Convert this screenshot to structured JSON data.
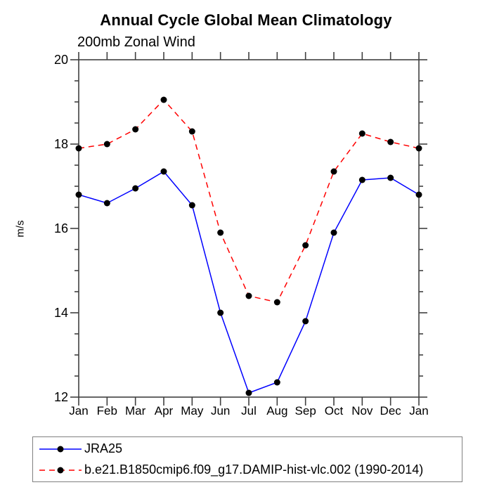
{
  "header": {
    "title": "Annual Cycle Global Mean Climatology",
    "subtitle": "200mb Zonal Wind"
  },
  "chart_data": {
    "type": "line",
    "title": "Annual Cycle Global Mean Climatology",
    "subtitle": "200mb Zonal Wind",
    "xlabel": "",
    "ylabel": "m/s",
    "x_labels": [
      "Jan",
      "Feb",
      "Mar",
      "Apr",
      "May",
      "Jun",
      "Jul",
      "Aug",
      "Sep",
      "Oct",
      "Nov",
      "Dec",
      "Jan"
    ],
    "ylim": [
      12,
      20
    ],
    "ytick_major": [
      12,
      14,
      16,
      18,
      20
    ],
    "ytick_minor_step": 0.5,
    "grid": false,
    "axis_color": "#404040",
    "marker": {
      "shape": "circle",
      "color": "#000000",
      "radius": 4.5
    },
    "legend_position": "bottom",
    "legend_border_color": "#808080",
    "series": [
      {
        "name": "JRA25",
        "color": "#0000ff",
        "style": "solid",
        "values": [
          16.8,
          16.6,
          16.95,
          17.35,
          16.55,
          14.0,
          12.1,
          12.35,
          13.8,
          15.9,
          17.15,
          17.2,
          16.8
        ]
      },
      {
        "name": "b.e21.B1850cmip6.f09_g17.DAMIP-hist-vlc.002 (1990-2014)",
        "color": "#ff0000",
        "style": "dashed",
        "values": [
          17.9,
          18.0,
          18.35,
          19.05,
          18.3,
          15.9,
          14.4,
          14.25,
          15.6,
          17.35,
          18.25,
          18.05,
          17.9
        ]
      }
    ]
  }
}
